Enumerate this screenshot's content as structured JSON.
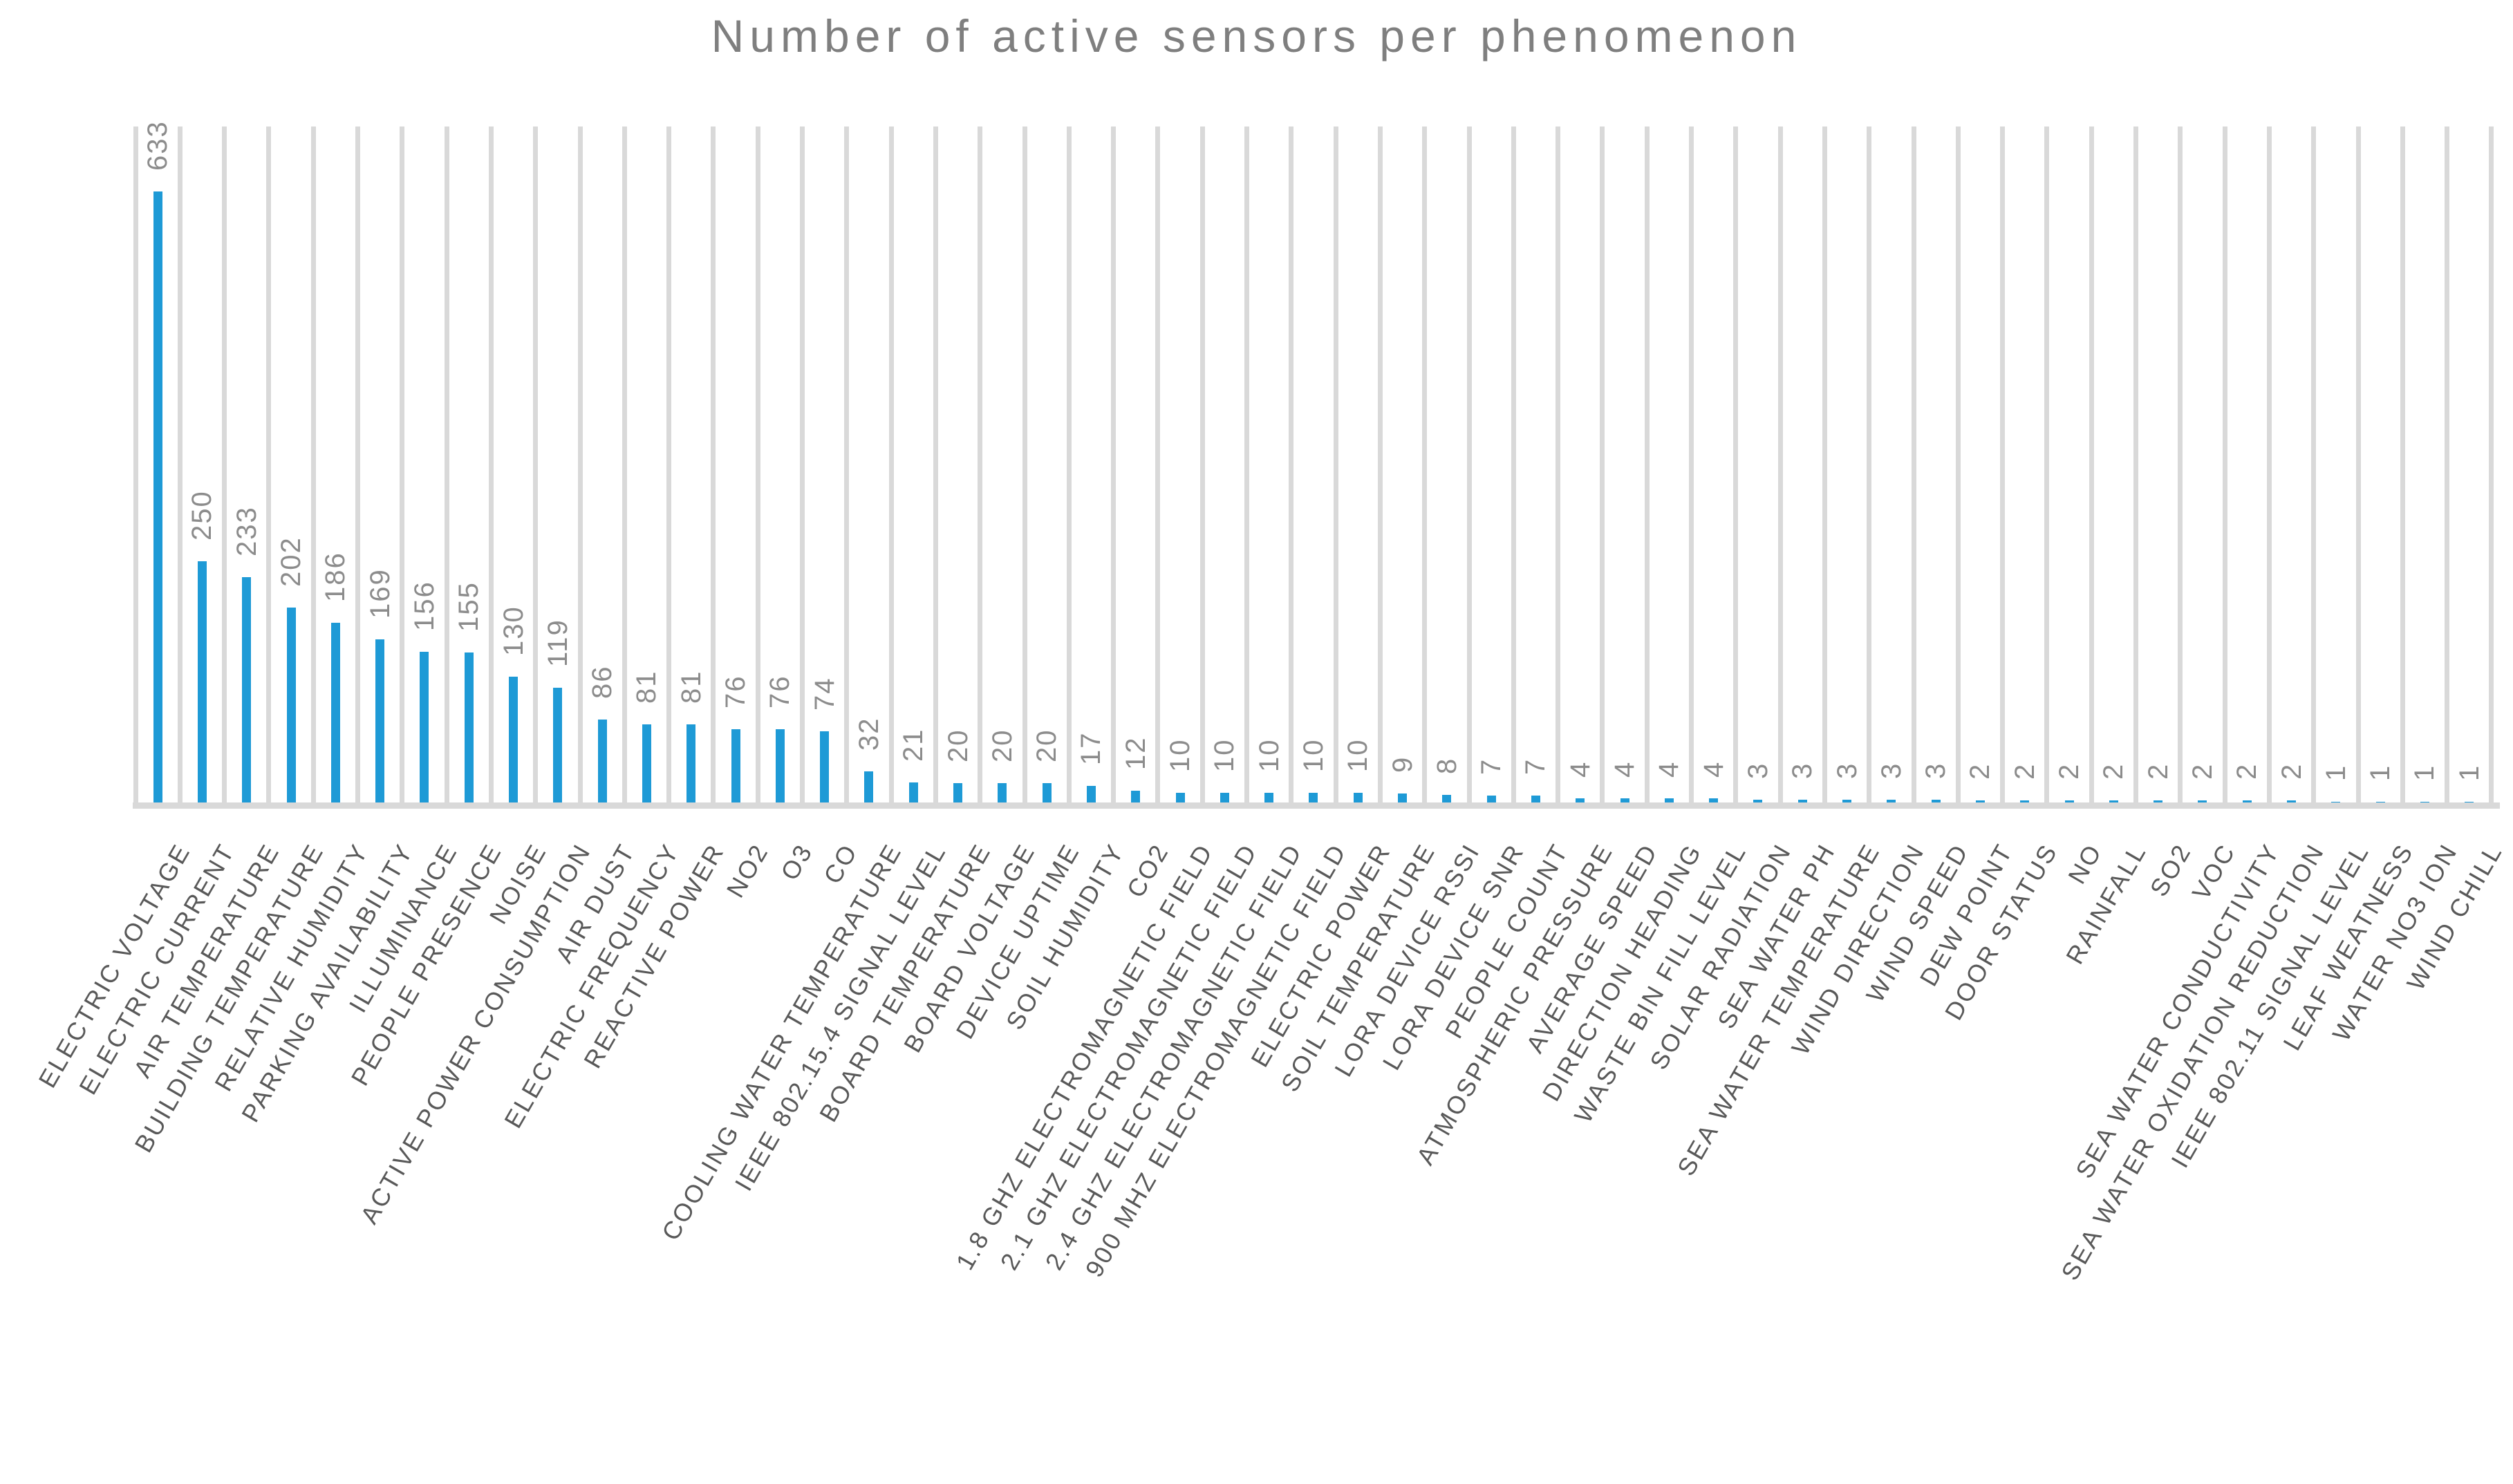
{
  "title": "Number of active sensors per phenomenon",
  "colors": {
    "bar": "#1E9AD6",
    "gridline": "#D9D9D9",
    "axis_line": "#D9D9D9",
    "title_text": "#7F7F7F",
    "value_label_text": "#8C8C8C",
    "category_label_text": "#595959",
    "background": "#FFFFFF"
  },
  "chart_data": {
    "type": "bar",
    "title": "Number of active sensors per phenomenon",
    "xlabel": "",
    "ylabel": "",
    "ylim": [
      0,
      700
    ],
    "legend": "none",
    "grid": "vertical category gridlines only",
    "value_labels": "rotated 90° above each bar",
    "category_labels": "rotated 60°, uppercase",
    "categories": [
      "ELECTRIC VOLTAGE",
      "ELECTRIC CURRENT",
      "AIR TEMPERATURE",
      "BUILDING TEMPERATURE",
      "RELATIVE HUMIDITY",
      "PARKING AVAILABILITY",
      "ILLUMINANCE",
      "PEOPLE PRESENCE",
      "NOISE",
      "ACTIVE POWER CONSUMPTION",
      "AIR DUST",
      "ELECTRIC FREQUENCY",
      "REACTIVE POWER",
      "NO2",
      "O3",
      "CO",
      "COOLING WATER TEMPERATURE",
      "IEEE 802.15.4 SIGNAL LEVEL",
      "BOARD TEMPERATURE",
      "BOARD VOLTAGE",
      "DEVICE UPTIME",
      "SOIL HUMIDITY",
      "CO2",
      "1.8 GHZ ELECTROMAGNETIC FIELD",
      "2.1 GHZ ELECTROMAGNETIC FIELD",
      "2.4 GHZ ELECTROMAGNETIC FIELD",
      "900 MHZ ELECTROMAGNETIC FIELD",
      "ELECTRIC POWER",
      "SOIL TEMPERATURE",
      "LORA DEVICE RSSI",
      "LORA DEVICE SNR",
      "PEOPLE COUNT",
      "ATMOSPHERIC PRESSURE",
      "AVERAGE SPEED",
      "DIRECTION HEADING",
      "WASTE BIN FILL LEVEL",
      "SOLAR RADIATION",
      "SEA WATER PH",
      "SEA WATER TEMPERATURE",
      "WIND DIRECTION",
      "WIND SPEED",
      "DEW POINT",
      "DOOR STATUS",
      "NO",
      "RAINFALL",
      "SO2",
      "VOC",
      "SEA WATER CONDUCTIVITY",
      "SEA WATER OXIDATION REDUCTION",
      "IEEE 802.11 SIGNAL LEVEL",
      "LEAF WEATNESS",
      "WATER NO3 ION",
      "WIND CHILL"
    ],
    "values": [
      633,
      250,
      233,
      202,
      186,
      169,
      156,
      155,
      130,
      119,
      86,
      81,
      81,
      76,
      76,
      74,
      32,
      21,
      20,
      20,
      20,
      17,
      12,
      10,
      10,
      10,
      10,
      10,
      9,
      8,
      7,
      7,
      4,
      4,
      4,
      4,
      3,
      3,
      3,
      3,
      3,
      2,
      2,
      2,
      2,
      2,
      2,
      2,
      2,
      1,
      1,
      1,
      1
    ]
  }
}
